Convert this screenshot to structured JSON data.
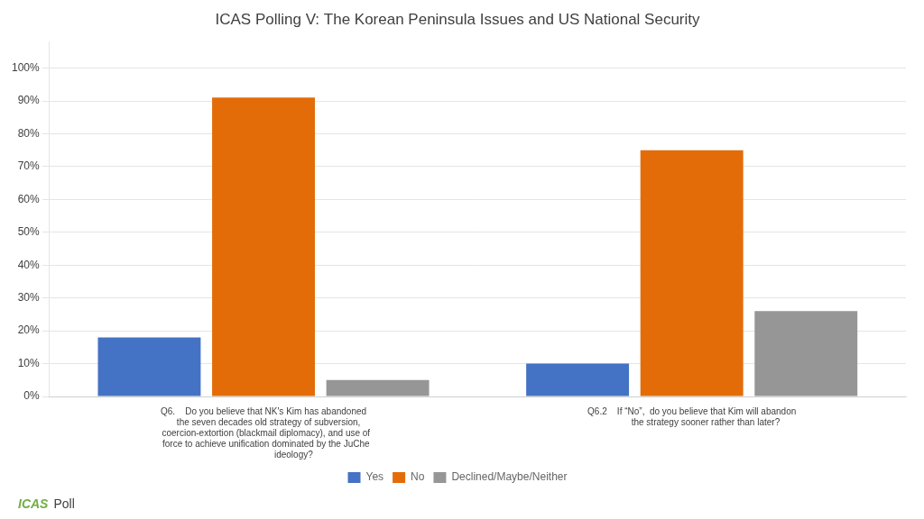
{
  "chart_data": {
    "type": "bar",
    "title": "ICAS Polling V: The Korean Peninsula Issues and US National Security",
    "categories": [
      "Q6.    Do you believe that NK's Kim has abandoned\n    the seven decades old strategy of subversion,\n  coercion-extortion (blackmail diplomacy), and use of\n  force to achieve unification dominated by the JuChe\n                        ideology?",
      "Q6.2    If “No”,  do you believe that Kim will abandon\n           the strategy sooner rather than later?"
    ],
    "series": [
      {
        "name": "Yes",
        "color": "#4472C4",
        "values": [
          0.18,
          0.1
        ]
      },
      {
        "name": "No",
        "color": "#E36C09",
        "values": [
          0.91,
          0.75
        ]
      },
      {
        "name": "Declined/Maybe/Neither",
        "color": "#969696",
        "values": [
          0.05,
          0.26
        ]
      }
    ],
    "ylim": [
      0,
      1.08
    ],
    "yticks": [
      {
        "value": 0.0,
        "label": "0%"
      },
      {
        "value": 0.1,
        "label": "10%"
      },
      {
        "value": 0.2,
        "label": "20%"
      },
      {
        "value": 0.3,
        "label": "30%"
      },
      {
        "value": 0.4,
        "label": "40%"
      },
      {
        "value": 0.5,
        "label": "50%"
      },
      {
        "value": 0.6,
        "label": "60%"
      },
      {
        "value": 0.7,
        "label": "70%"
      },
      {
        "value": 0.8,
        "label": "80%"
      },
      {
        "value": 0.9,
        "label": "90%"
      },
      {
        "value": 1.0,
        "label": "100%"
      }
    ],
    "grid": true,
    "legend": "bottom",
    "annotations": [
      {
        "text": "ICAS",
        "color": "#70AD47"
      },
      {
        "text": "Poll",
        "color": "#404040"
      }
    ]
  }
}
